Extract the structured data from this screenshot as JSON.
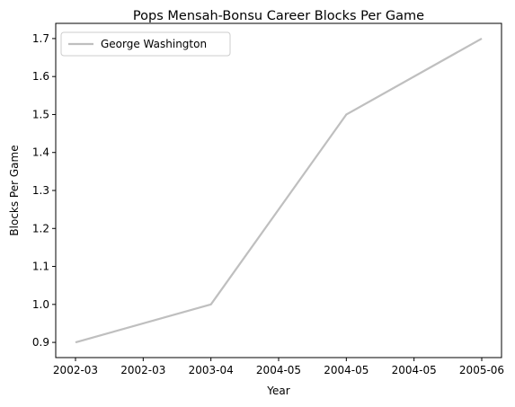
{
  "chart_data": {
    "type": "line",
    "title": "Pops Mensah-Bonsu Career Blocks Per Game",
    "xlabel": "Year",
    "ylabel": "Blocks Per Game",
    "x": [
      "2002-03",
      "2003-04",
      "2004-05",
      "2005-06"
    ],
    "x_ticks": [
      "2002-03",
      "2002-03",
      "2003-04",
      "2004-05",
      "2004-05",
      "2004-05",
      "2005-06"
    ],
    "ylim": [
      0.86,
      1.74
    ],
    "y_ticks": [
      0.9,
      1.0,
      1.1,
      1.2,
      1.3,
      1.4,
      1.5,
      1.6,
      1.7
    ],
    "grid": false,
    "legend": "upper-left",
    "series": [
      {
        "name": "George Washington",
        "color": "#bfbfbf",
        "values": [
          0.9,
          1.0,
          1.5,
          1.7
        ]
      }
    ]
  }
}
